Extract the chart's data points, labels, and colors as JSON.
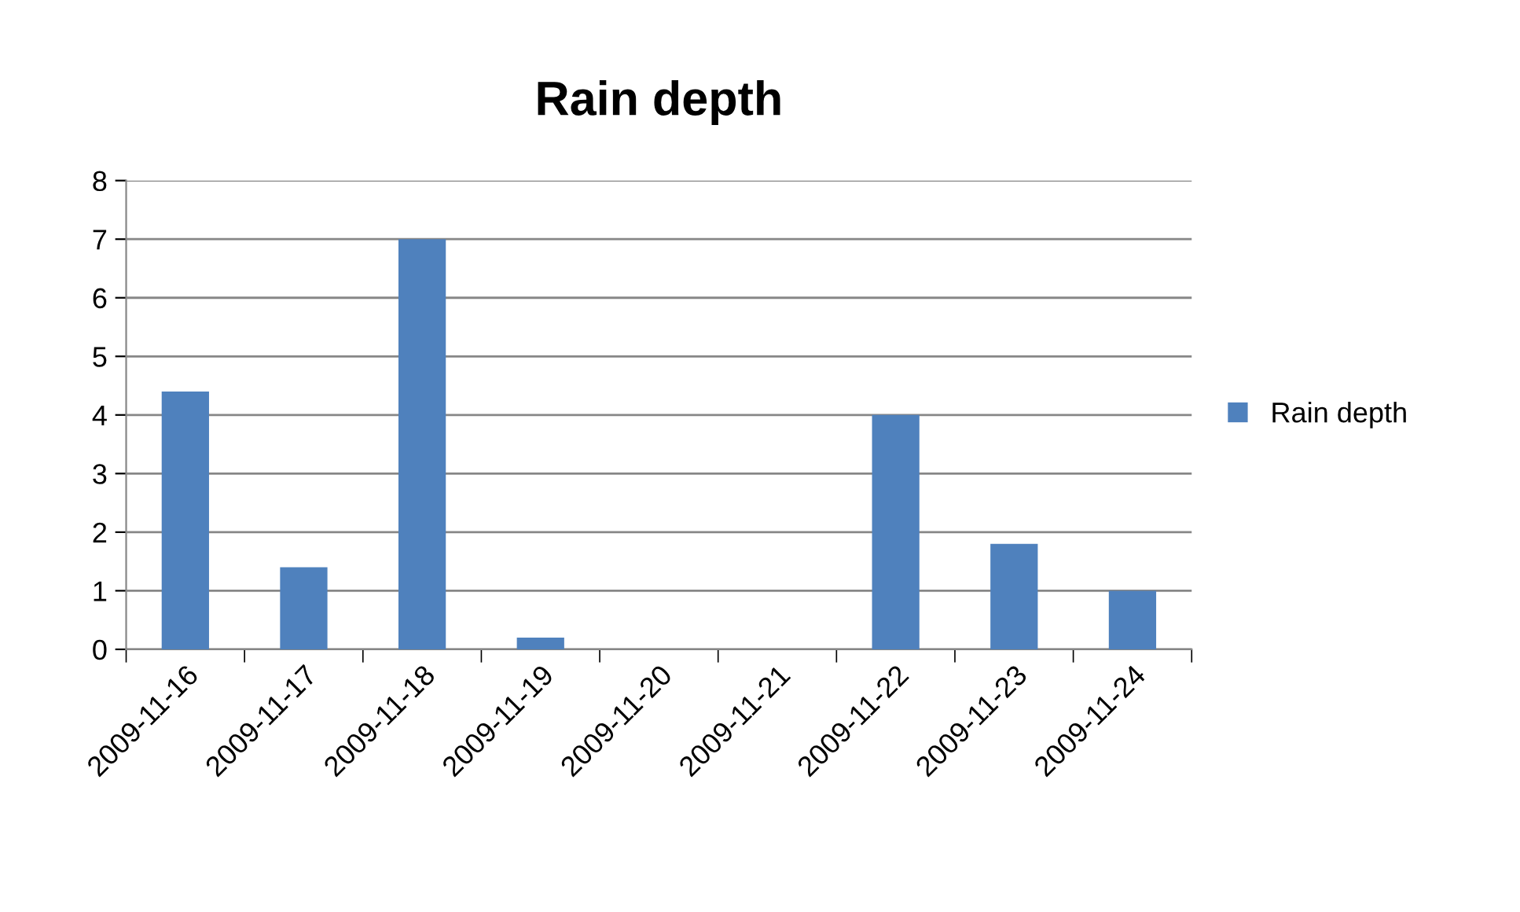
{
  "chart_data": {
    "type": "bar",
    "title": "Rain depth",
    "categories": [
      "2009-11-16",
      "2009-11-17",
      "2009-11-18",
      "2009-11-19",
      "2009-11-20",
      "2009-11-21",
      "2009-11-22",
      "2009-11-23",
      "2009-11-24"
    ],
    "series": [
      {
        "name": "Rain depth",
        "color": "#4f81bd",
        "values": [
          4.4,
          1.4,
          7,
          0.2,
          0,
          0,
          4,
          1.8,
          1
        ]
      }
    ],
    "ylim": [
      0,
      8
    ],
    "yticks": [
      0,
      1,
      2,
      3,
      4,
      5,
      6,
      7,
      8
    ],
    "grid": "y",
    "legend": "right"
  }
}
